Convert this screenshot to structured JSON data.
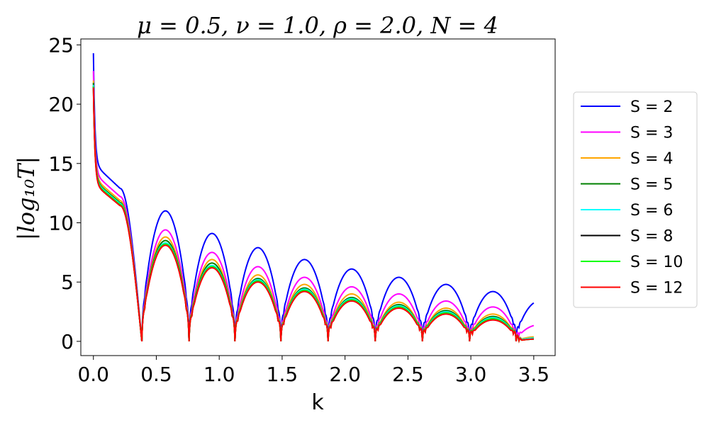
{
  "chart_data": {
    "type": "line",
    "title": "μ = 0.5, ν = 1.0, ρ = 2.0, N = 4",
    "xlabel": "k",
    "ylabel": "|log₁₀T|",
    "xlim": [
      -0.1,
      3.67
    ],
    "ylim": [
      -1.2,
      25.5
    ],
    "xticks": [
      "0.0",
      "0.5",
      "1.0",
      "1.5",
      "2.0",
      "2.5",
      "3.0",
      "3.5"
    ],
    "xtick_values": [
      0.0,
      0.5,
      1.0,
      1.5,
      2.0,
      2.5,
      3.0,
      3.5
    ],
    "yticks": [
      "0",
      "5",
      "10",
      "15",
      "20",
      "25"
    ],
    "ytick_values": [
      0,
      5,
      10,
      15,
      20,
      25
    ],
    "grid": false,
    "legend_position": "right-outside",
    "zeros": [
      0.385,
      0.76,
      1.125,
      1.49,
      1.865,
      2.24,
      2.615,
      2.99,
      3.36
    ],
    "series": [
      {
        "name": "S = 2",
        "color": "#0000ff",
        "start": 24.3,
        "plateau": 15.0,
        "peaks": [
          11.0,
          9.1,
          7.9,
          6.9,
          6.1,
          5.4,
          4.8,
          4.2,
          3.4
        ]
      },
      {
        "name": "S = 3",
        "color": "#ff00ff",
        "start": 22.8,
        "plateau": 14.2,
        "peaks": [
          9.4,
          7.5,
          6.3,
          5.4,
          4.6,
          4.0,
          3.4,
          2.9,
          1.4
        ]
      },
      {
        "name": "S = 4",
        "color": "#ffa500",
        "start": 22.0,
        "plateau": 13.8,
        "peaks": [
          8.8,
          6.9,
          5.6,
          4.8,
          4.0,
          3.3,
          2.8,
          2.3,
          0.4
        ]
      },
      {
        "name": "S = 5",
        "color": "#008000",
        "start": 21.8,
        "plateau": 13.6,
        "peaks": [
          8.5,
          6.6,
          5.3,
          4.5,
          3.7,
          3.1,
          2.6,
          2.1,
          0.3
        ]
      },
      {
        "name": "S = 6",
        "color": "#00ffff",
        "start": 21.6,
        "plateau": 13.5,
        "peaks": [
          8.3,
          6.4,
          5.2,
          4.4,
          3.6,
          3.0,
          2.5,
          2.0,
          0.3
        ]
      },
      {
        "name": "S = 8",
        "color": "#000000",
        "start": 21.5,
        "plateau": 13.4,
        "peaks": [
          8.2,
          6.3,
          5.1,
          4.3,
          3.5,
          2.9,
          2.4,
          1.9,
          0.2
        ]
      },
      {
        "name": "S = 10",
        "color": "#00ff00",
        "start": 21.5,
        "plateau": 13.4,
        "peaks": [
          8.2,
          6.3,
          5.1,
          4.3,
          3.5,
          2.9,
          2.4,
          1.9,
          0.2
        ]
      },
      {
        "name": "S = 12",
        "color": "#ff0000",
        "start": 21.4,
        "plateau": 13.3,
        "peaks": [
          8.1,
          6.2,
          5.0,
          4.2,
          3.4,
          2.8,
          2.3,
          1.8,
          0.2
        ]
      }
    ]
  }
}
